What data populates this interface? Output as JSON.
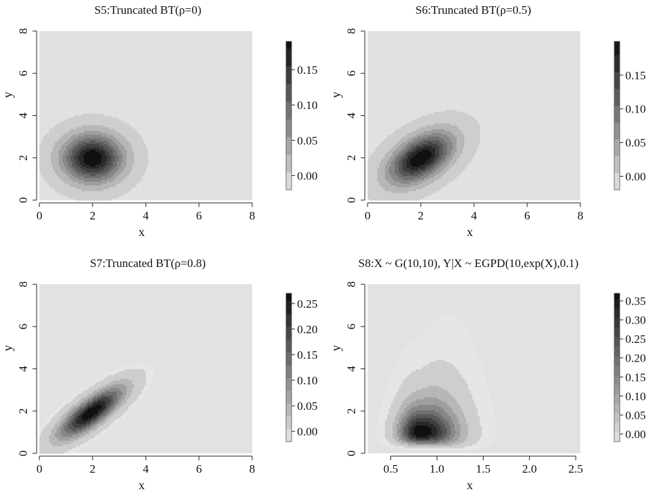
{
  "chart_data": [
    {
      "type": "heatmap",
      "title": "S5:Truncated BT(ρ=0)",
      "xlabel": "x",
      "ylabel": "y",
      "xlim": [
        0,
        8
      ],
      "ylim": [
        0,
        8
      ],
      "x_ticks": [
        "0",
        "2",
        "4",
        "6",
        "8"
      ],
      "x_tick_values": [
        0,
        2,
        4,
        6,
        8
      ],
      "y_ticks": [
        "0",
        "2",
        "4",
        "6",
        "8"
      ],
      "y_tick_values": [
        0,
        2,
        4,
        6,
        8
      ],
      "colorbar": {
        "range": [
          -0.02,
          0.19
        ],
        "ticks": [
          "0.00",
          "0.05",
          "0.10",
          "0.15"
        ],
        "tick_values": [
          0,
          0.05,
          0.1,
          0.15
        ]
      },
      "density": {
        "kind": "gaussian",
        "mean": [
          2.0,
          2.0
        ],
        "sd": [
          0.75,
          0.75
        ],
        "rho": 0.0,
        "peak": 0.19
      },
      "background_level": 0.005
    },
    {
      "type": "heatmap",
      "title": "S6:Truncated BT(ρ=0.5)",
      "xlabel": "x",
      "ylabel": "y",
      "xlim": [
        0,
        8
      ],
      "ylim": [
        0,
        8
      ],
      "x_ticks": [
        "0",
        "2",
        "4",
        "6",
        "8"
      ],
      "x_tick_values": [
        0,
        2,
        4,
        6,
        8
      ],
      "y_ticks": [
        "0",
        "2",
        "4",
        "6",
        "8"
      ],
      "y_tick_values": [
        0,
        2,
        4,
        6,
        8
      ],
      "colorbar": {
        "range": [
          -0.02,
          0.2
        ],
        "ticks": [
          "0.00",
          "0.05",
          "0.10",
          "0.15"
        ],
        "tick_values": [
          0,
          0.05,
          0.1,
          0.15
        ]
      },
      "density": {
        "kind": "gaussian",
        "mean": [
          2.0,
          2.0
        ],
        "sd": [
          0.8,
          0.8
        ],
        "rho": 0.5,
        "peak": 0.2
      },
      "background_level": 0.005
    },
    {
      "type": "heatmap",
      "title": "S7:Truncated BT(ρ=0.8)",
      "xlabel": "x",
      "ylabel": "y",
      "xlim": [
        0,
        8
      ],
      "ylim": [
        0,
        8
      ],
      "x_ticks": [
        "0",
        "2",
        "4",
        "6",
        "8"
      ],
      "x_tick_values": [
        0,
        2,
        4,
        6,
        8
      ],
      "y_ticks": [
        "0",
        "2",
        "4",
        "6",
        "8"
      ],
      "y_tick_values": [
        0,
        2,
        4,
        6,
        8
      ],
      "colorbar": {
        "range": [
          -0.02,
          0.27
        ],
        "ticks": [
          "0.00",
          "0.05",
          "0.10",
          "0.15",
          "0.20",
          "0.25"
        ],
        "tick_values": [
          0,
          0.05,
          0.1,
          0.15,
          0.2,
          0.25
        ]
      },
      "density": {
        "kind": "gaussian",
        "mean": [
          1.95,
          1.95
        ],
        "sd": [
          0.8,
          0.8
        ],
        "rho": 0.8,
        "peak": 0.27
      },
      "background_level": 0.005
    },
    {
      "type": "heatmap",
      "title": "S8:X ~ G(10,10),  Y|X ~ EGPD(10,exp(X),0.1)",
      "xlabel": "x",
      "ylabel": "y",
      "xlim": [
        0.25,
        2.55
      ],
      "ylim": [
        0,
        8
      ],
      "x_ticks": [
        "0.5",
        "1.0",
        "1.5",
        "2.0",
        "2.5"
      ],
      "x_tick_values": [
        0.5,
        1.0,
        1.5,
        2.0,
        2.5
      ],
      "y_ticks": [
        "0",
        "2",
        "4",
        "6",
        "8"
      ],
      "y_tick_values": [
        0,
        2,
        4,
        6,
        8
      ],
      "colorbar": {
        "range": [
          -0.02,
          0.37
        ],
        "ticks": [
          "0.00",
          "0.05",
          "0.10",
          "0.15",
          "0.20",
          "0.25",
          "0.30",
          "0.35"
        ],
        "tick_values": [
          0,
          0.05,
          0.1,
          0.15,
          0.2,
          0.25,
          0.3,
          0.35
        ]
      },
      "density": {
        "kind": "skewed",
        "mode": [
          0.82,
          1.05
        ],
        "peak": 0.37
      },
      "background_level": 0.01
    }
  ]
}
